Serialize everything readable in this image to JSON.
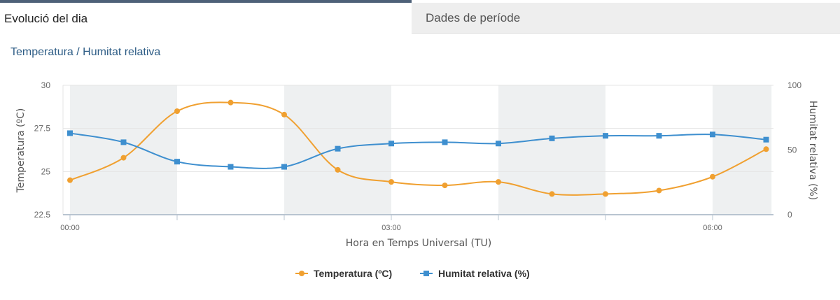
{
  "tabs": [
    {
      "label": "Evolució del dia",
      "active": true
    },
    {
      "label": "Dades de període",
      "active": false
    }
  ],
  "section_title": "Temperatura / Humitat relativa",
  "colors": {
    "temperature": "#f0a030",
    "humidity": "#3e8fcf",
    "shade": "#eef0f1",
    "tab_border": "#4e6178",
    "title": "#2e5d86"
  },
  "chart_data": {
    "type": "line",
    "xlabel": "Hora en Temps Universal (TU)",
    "x_ticks": [
      "00:00",
      "03:00",
      "06:00"
    ],
    "x_hours": [
      0,
      0.5,
      1,
      1.5,
      2,
      2.5,
      3,
      3.5,
      4,
      4.5,
      5,
      5.5,
      6,
      6.5
    ],
    "y_left": {
      "label": "Temperatura (ºC)",
      "ticks": [
        "22.5",
        "25",
        "27.5",
        "30"
      ],
      "range": [
        22.5,
        30
      ]
    },
    "y_right": {
      "label": "Humitat relativa (%)",
      "ticks": [
        "0",
        "50",
        "100"
      ],
      "range": [
        0,
        100
      ]
    },
    "series": [
      {
        "name": "Temperatura (ºC)",
        "axis": "left",
        "marker": "circle",
        "values": [
          24.5,
          25.8,
          28.5,
          29.0,
          28.3,
          25.1,
          24.4,
          24.2,
          24.4,
          23.7,
          23.7,
          23.9,
          24.7,
          26.3
        ]
      },
      {
        "name": "Humitat relativa (%)",
        "axis": "right",
        "marker": "square",
        "values": [
          63,
          56,
          41,
          37,
          37,
          51,
          55,
          56,
          55,
          59,
          61,
          61,
          62,
          58
        ]
      }
    ],
    "shaded_hour_bands": [
      [
        0,
        1
      ],
      [
        2,
        3
      ],
      [
        4,
        5
      ],
      [
        6,
        6.55
      ]
    ],
    "grid": true,
    "legend": "bottom-center"
  }
}
